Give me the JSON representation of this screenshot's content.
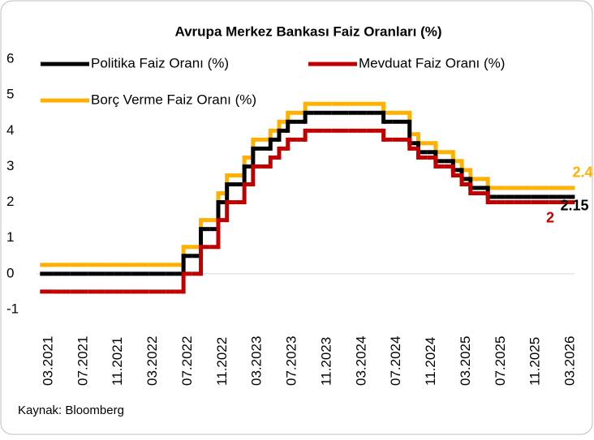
{
  "chart_data": {
    "type": "step-line",
    "title": "Avrupa Merkez Bankası Faiz Oranları (%)",
    "source": "Kaynak: Bloomberg",
    "categories": [
      "03.2021",
      null,
      null,
      null,
      "07.2021",
      null,
      null,
      null,
      "11.2021",
      null,
      null,
      null,
      "03.2022",
      null,
      null,
      null,
      "07.2022",
      null,
      null,
      null,
      "11.2022",
      null,
      null,
      null,
      "03.2023",
      null,
      null,
      null,
      "07.2023",
      null,
      null,
      null,
      "11.2023",
      null,
      null,
      null,
      "03.2024",
      null,
      null,
      null,
      "07.2024",
      null,
      null,
      null,
      "11.2024",
      null,
      null,
      null,
      "03.2025",
      null,
      null,
      null,
      "07.2025",
      null,
      null,
      null,
      "11.2025",
      null,
      null,
      null,
      "03.2026"
    ],
    "series": [
      {
        "name": "Politika Faiz Oranı (%)",
        "color": "#000000",
        "values": [
          0,
          0,
          0,
          0,
          0,
          0,
          0,
          0,
          0,
          0,
          0,
          0,
          0,
          0,
          0,
          0,
          0.5,
          0.5,
          1.25,
          1.25,
          2.0,
          2.5,
          2.5,
          3.0,
          3.5,
          3.5,
          3.75,
          4.0,
          4.25,
          4.25,
          4.5,
          4.5,
          4.5,
          4.5,
          4.5,
          4.5,
          4.5,
          4.5,
          4.5,
          4.25,
          4.25,
          4.25,
          3.65,
          3.4,
          3.4,
          3.15,
          3.15,
          2.9,
          2.65,
          2.4,
          2.4,
          2.15,
          2.15,
          2.15,
          2.15,
          2.15,
          2.15,
          2.15,
          2.15,
          2.15,
          2.15
        ]
      },
      {
        "name": "Mevduat Faiz Oranı (%)",
        "color": "#c00000",
        "values": [
          -0.5,
          -0.5,
          -0.5,
          -0.5,
          -0.5,
          -0.5,
          -0.5,
          -0.5,
          -0.5,
          -0.5,
          -0.5,
          -0.5,
          -0.5,
          -0.5,
          -0.5,
          -0.5,
          0,
          0,
          0.75,
          0.75,
          1.5,
          2.0,
          2.0,
          2.5,
          3.0,
          3.0,
          3.25,
          3.5,
          3.75,
          3.75,
          4.0,
          4.0,
          4.0,
          4.0,
          4.0,
          4.0,
          4.0,
          4.0,
          4.0,
          3.75,
          3.75,
          3.75,
          3.5,
          3.25,
          3.25,
          3.0,
          3.0,
          2.75,
          2.5,
          2.25,
          2.25,
          2,
          2,
          2,
          2,
          2,
          2,
          2,
          2,
          2,
          2
        ]
      },
      {
        "name": "Borç Verme Faiz Oranı (%)",
        "color": "#ffb000",
        "values": [
          0.25,
          0.25,
          0.25,
          0.25,
          0.25,
          0.25,
          0.25,
          0.25,
          0.25,
          0.25,
          0.25,
          0.25,
          0.25,
          0.25,
          0.25,
          0.25,
          0.75,
          0.75,
          1.5,
          1.5,
          2.25,
          2.75,
          2.75,
          3.25,
          3.75,
          3.75,
          4.0,
          4.25,
          4.5,
          4.5,
          4.75,
          4.75,
          4.75,
          4.75,
          4.75,
          4.75,
          4.75,
          4.75,
          4.75,
          4.5,
          4.5,
          4.5,
          3.9,
          3.65,
          3.65,
          3.4,
          3.4,
          3.15,
          2.9,
          2.65,
          2.65,
          2.4,
          2.4,
          2.4,
          2.4,
          2.4,
          2.4,
          2.4,
          2.4,
          2.4,
          2.4
        ]
      }
    ],
    "ylim": [
      -1,
      6
    ],
    "yticks": [
      -1,
      0,
      1,
      2,
      3,
      4,
      5,
      6
    ],
    "grid": false
  }
}
